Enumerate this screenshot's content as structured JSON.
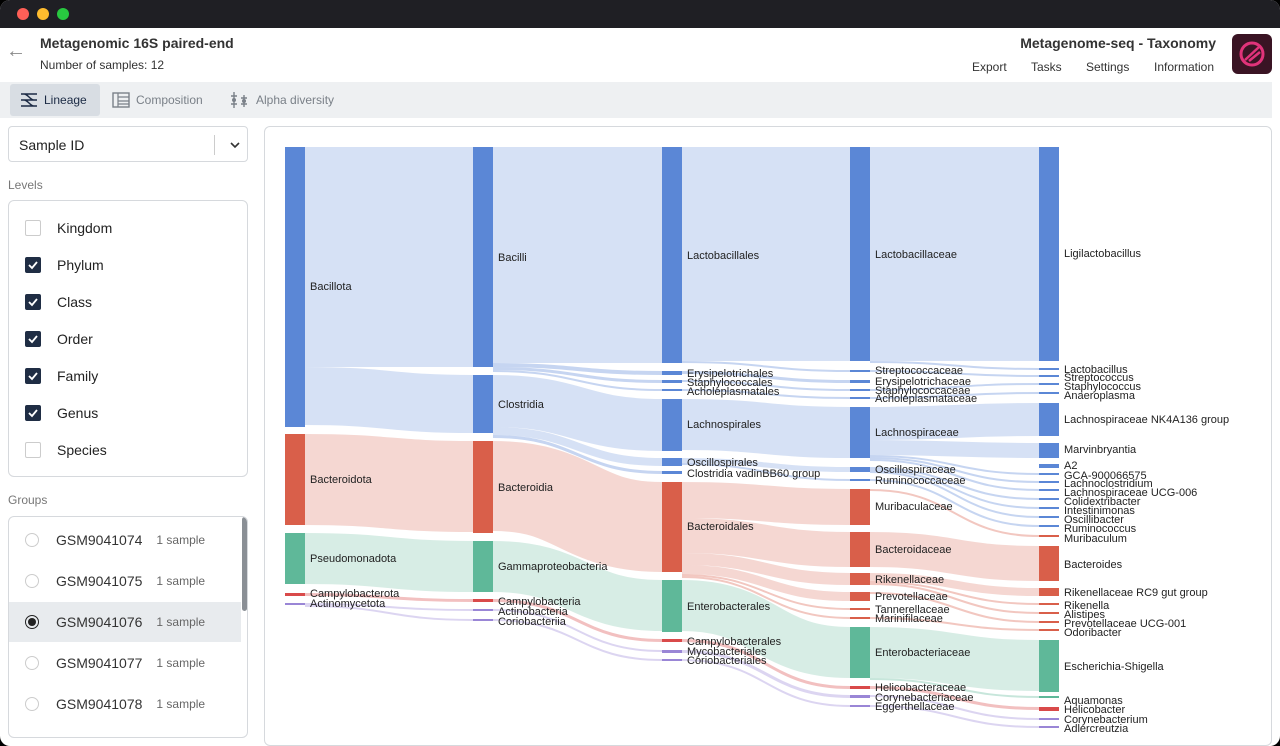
{
  "header": {
    "title": "Metagenomic 16S paired-end",
    "subtitle": "Number of samples: 12",
    "app_title": "Metagenome-seq - Taxonomy",
    "menu": [
      "Export",
      "Tasks",
      "Settings",
      "Information"
    ]
  },
  "tabs": [
    {
      "label": "Lineage",
      "icon": "lineage-icon",
      "active": true
    },
    {
      "label": "Composition",
      "icon": "composition-icon"
    },
    {
      "label": "Alpha diversity",
      "icon": "alpha-diversity-icon"
    }
  ],
  "sidebar": {
    "select_value": "Sample ID",
    "levels_label": "Levels",
    "levels": [
      {
        "label": "Kingdom",
        "checked": false
      },
      {
        "label": "Phylum",
        "checked": true
      },
      {
        "label": "Class",
        "checked": true
      },
      {
        "label": "Order",
        "checked": true
      },
      {
        "label": "Family",
        "checked": true
      },
      {
        "label": "Genus",
        "checked": true
      },
      {
        "label": "Species",
        "checked": false
      }
    ],
    "groups_label": "Groups",
    "groups": [
      {
        "name": "GSM9041074",
        "count": "1 sample"
      },
      {
        "name": "GSM9041075",
        "count": "1 sample"
      },
      {
        "name": "GSM9041076",
        "count": "1 sample",
        "selected": true
      },
      {
        "name": "GSM9041077",
        "count": "1 sample"
      },
      {
        "name": "GSM9041078",
        "count": "1 sample"
      }
    ]
  },
  "colors": {
    "bacillota": "#5b87d6",
    "bacteroidota": "#d95f4a",
    "pseudomonadota": "#5fb899",
    "campylobacterota": "#d94a4a",
    "actinomycetota": "#9a86d6"
  },
  "chart_data": {
    "type": "sankey",
    "levels": [
      "Phylum",
      "Class",
      "Order",
      "Family",
      "Genus"
    ],
    "nodes": [
      [
        "Bacillota",
        "Bacteroidota",
        "Pseudomonadota",
        "Campylobacterota",
        "Actinomycetota"
      ],
      [
        "Bacilli",
        "Clostridia",
        "Bacteroidia",
        "Gammaproteobacteria",
        "Campylobacteria",
        "Actinobacteria",
        "Coriobacteriia"
      ],
      [
        "Lactobacillales",
        "Erysipelotrichales",
        "Staphylococcales",
        "Acholeplasmatales",
        "Lachnospirales",
        "Oscillospirales",
        "Clostridia vadinBB60 group",
        "Bacteroidales",
        "Enterobacterales",
        "Campylobacterales",
        "Mycobacteriales",
        "Coriobacteriales"
      ],
      [
        "Lactobacillaceae",
        "Streptococcaceae",
        "Erysipelotrichaceae",
        "Staphylococcaceae",
        "Acholeplasmataceae",
        "Lachnospiraceae",
        "Oscillospiraceae",
        "Ruminococcaceae",
        "Muribaculaceae",
        "Bacteroidaceae",
        "Rikenellaceae",
        "Prevotellaceae",
        "Tannerellaceae",
        "Marinifilaceae",
        "Enterobacteriaceae",
        "Helicobacteraceae",
        "Corynebacteriaceae",
        "Eggerthellaceae"
      ],
      [
        "Ligilactobacillus",
        "Lactobacillus",
        "Streptococcus",
        "Staphylococcus",
        "Anaeroplasma",
        "Lachnospiraceae NK4A136 group",
        "Marvinbryantia",
        "A2",
        "GCA-900066575",
        "Lachnoclostridium",
        "Lachnospiraceae UCG-006",
        "Colidextribacter",
        "Intestinimonas",
        "Oscillibacter",
        "Ruminococcus",
        "Muribaculum",
        "Bacteroides",
        "Rikenellaceae RC9 gut group",
        "Rikenella",
        "Alistipes",
        "Prevotellaceae UCG-001",
        "Odoribacter",
        "Escherichia-Shigella",
        "Aquamonas",
        "Helicobacter",
        "Corynebacterium",
        "Adlercreutzia"
      ]
    ]
  }
}
